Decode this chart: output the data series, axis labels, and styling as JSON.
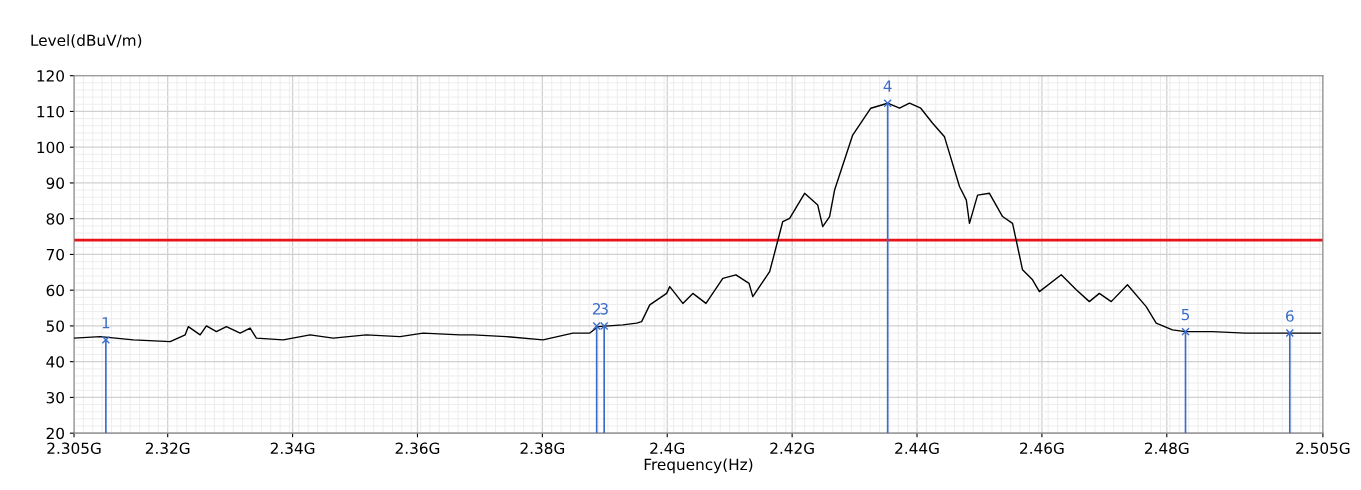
{
  "chart_data": {
    "type": "line",
    "ylabel": "Level(dBuV/m)",
    "xlabel": "Frequency(Hz)",
    "xlim": [
      2.305,
      2.505
    ],
    "ylim": [
      20,
      120
    ],
    "xticks": [
      {
        "value": 2.305,
        "label": "2.305G"
      },
      {
        "value": 2.32,
        "label": "2.32G"
      },
      {
        "value": 2.34,
        "label": "2.34G"
      },
      {
        "value": 2.36,
        "label": "2.36G"
      },
      {
        "value": 2.38,
        "label": "2.38G"
      },
      {
        "value": 2.4,
        "label": "2.4G"
      },
      {
        "value": 2.42,
        "label": "2.42G"
      },
      {
        "value": 2.44,
        "label": "2.44G"
      },
      {
        "value": 2.46,
        "label": "2.46G"
      },
      {
        "value": 2.48,
        "label": "2.48G"
      },
      {
        "value": 2.505,
        "label": "2.505G"
      }
    ],
    "yticks": [
      20,
      30,
      40,
      50,
      60,
      70,
      80,
      90,
      100,
      110,
      120
    ],
    "grid": true,
    "marker": "none",
    "line_style": "solid",
    "series": [
      {
        "color": "#000000",
        "x": [
          2.305,
          2.3092,
          2.3145,
          2.3204,
          2.3228,
          2.3233,
          2.3252,
          2.3262,
          2.3278,
          2.3294,
          2.3316,
          2.3332,
          2.3342,
          2.3385,
          2.3428,
          2.3465,
          2.3518,
          2.3572,
          2.3609,
          2.3668,
          2.3689,
          2.3742,
          2.3801,
          2.3849,
          2.3876,
          2.3889,
          2.3929,
          2.3951,
          2.3959,
          2.3972,
          2.3999,
          2.4004,
          2.4025,
          2.4041,
          2.4062,
          2.4089,
          2.411,
          2.4131,
          2.4137,
          2.4164,
          2.4169,
          2.4185,
          2.4196,
          2.422,
          2.4241,
          2.4249,
          2.426,
          2.4268,
          2.4297,
          2.4326,
          2.4353,
          2.4372,
          2.4388,
          2.4406,
          2.4425,
          2.4444,
          2.4468,
          2.4479,
          2.4484,
          2.4497,
          2.4516,
          2.4537,
          2.4553,
          2.4569,
          2.4585,
          2.4596,
          2.4631,
          2.4655,
          2.4676,
          2.4692,
          2.4711,
          2.4737,
          2.4767,
          2.4783,
          2.4809,
          2.483,
          2.4873,
          2.4926,
          2.4997,
          2.5046
        ],
        "values": [
          46.6,
          47.0,
          46.1,
          45.6,
          47.5,
          49.8,
          47.5,
          50.0,
          48.4,
          49.8,
          48.0,
          49.4,
          46.6,
          46.1,
          47.5,
          46.6,
          47.5,
          47.0,
          48.0,
          47.5,
          47.5,
          47.0,
          46.1,
          48.0,
          48.0,
          49.8,
          50.3,
          50.8,
          51.2,
          55.9,
          59.1,
          61.0,
          56.3,
          59.1,
          56.3,
          63.3,
          64.3,
          61.9,
          58.2,
          65.2,
          68.5,
          79.2,
          80.1,
          87.1,
          83.8,
          77.8,
          80.6,
          88.0,
          103.4,
          110.9,
          112.3,
          110.9,
          112.3,
          110.9,
          106.7,
          102.9,
          89.0,
          85.2,
          78.7,
          86.6,
          87.1,
          80.6,
          78.7,
          65.7,
          62.9,
          59.6,
          64.3,
          60.1,
          56.8,
          59.1,
          56.8,
          61.5,
          55.4,
          50.8,
          48.9,
          48.4,
          48.4,
          48.0,
          48.0,
          48.0
        ]
      },
      {
        "type": "lollipop",
        "color": "#3a6cc8",
        "marker": "cross",
        "x": [
          2.3101,
          2.3887,
          2.3899,
          2.4353,
          2.483,
          2.4997
        ],
        "values": [
          46.1,
          50.0,
          50.0,
          112.3,
          48.4,
          48.0
        ]
      }
    ],
    "ref_lines": [
      {
        "axis": "y",
        "value": 74,
        "color": "#e8141c"
      }
    ],
    "annotations": [
      {
        "text": "1",
        "x": 2.3101,
        "y": 46.1
      },
      {
        "text": "2",
        "x": 2.3887,
        "y": 50.0
      },
      {
        "text": "3",
        "x": 2.3899,
        "y": 50.0
      },
      {
        "text": "4",
        "x": 2.4353,
        "y": 112.3
      },
      {
        "text": "5",
        "x": 2.483,
        "y": 48.4
      },
      {
        "text": "6",
        "x": 2.4997,
        "y": 48.0
      }
    ]
  }
}
